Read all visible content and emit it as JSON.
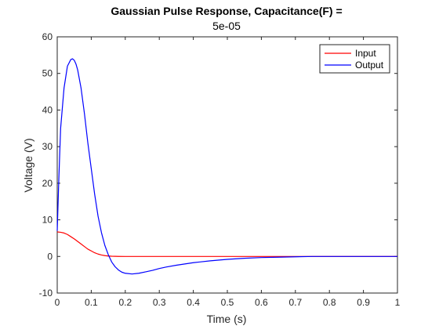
{
  "chart_data": {
    "type": "line",
    "title": "Gaussian Pulse Response, Capacitance(F) =",
    "subtitle": "5e-05",
    "xlabel": "Time (s)",
    "ylabel": "Voltage (V)",
    "xlim": [
      0,
      1
    ],
    "ylim": [
      -10,
      60
    ],
    "x_ticks": [
      0,
      0.1,
      0.2,
      0.3,
      0.4,
      0.5,
      0.6,
      0.7,
      0.8,
      0.9,
      1
    ],
    "x_tick_labels": [
      "0",
      "0.1",
      "0.2",
      "0.3",
      "0.4",
      "0.5",
      "0.6",
      "0.7",
      "0.8",
      "0.9",
      "1"
    ],
    "y_ticks": [
      -10,
      0,
      10,
      20,
      30,
      40,
      50,
      60
    ],
    "y_tick_labels": [
      "-10",
      "0",
      "10",
      "20",
      "30",
      "40",
      "50",
      "60"
    ],
    "grid": false,
    "legend_position": "top-right",
    "series": [
      {
        "name": "Input",
        "color": "#ff0000",
        "x": [
          0,
          0.01,
          0.02,
          0.03,
          0.04,
          0.05,
          0.06,
          0.07,
          0.08,
          0.09,
          0.1,
          0.11,
          0.12,
          0.13,
          0.14,
          0.15,
          0.16,
          0.17,
          0.18,
          0.2,
          0.22,
          0.25,
          0.3,
          0.4,
          0.5,
          0.6,
          0.7,
          0.8,
          0.9,
          1.0
        ],
        "y": [
          6.7,
          6.6,
          6.4,
          6.0,
          5.4,
          4.8,
          4.1,
          3.4,
          2.7,
          2.0,
          1.5,
          1.0,
          0.65,
          0.4,
          0.22,
          0.12,
          0.06,
          0.03,
          0.01,
          0,
          0,
          0,
          0,
          0,
          0,
          0,
          0,
          0,
          0,
          0
        ]
      },
      {
        "name": "Output",
        "color": "#0000ff",
        "x": [
          0,
          0.005,
          0.01,
          0.02,
          0.03,
          0.04,
          0.045,
          0.05,
          0.055,
          0.06,
          0.07,
          0.08,
          0.09,
          0.1,
          0.11,
          0.12,
          0.13,
          0.14,
          0.15,
          0.16,
          0.17,
          0.18,
          0.19,
          0.2,
          0.22,
          0.24,
          0.26,
          0.28,
          0.3,
          0.32,
          0.35,
          0.4,
          0.45,
          0.5,
          0.55,
          0.6,
          0.65,
          0.7,
          0.75,
          0.8,
          0.85,
          0.9,
          0.95,
          1.0
        ],
        "y": [
          7,
          22,
          35,
          46,
          52,
          53.8,
          54,
          53.6,
          52.6,
          51,
          46,
          39,
          31,
          24,
          17,
          11,
          6.5,
          3,
          0.5,
          -1.5,
          -2.8,
          -3.7,
          -4.3,
          -4.6,
          -4.8,
          -4.6,
          -4.2,
          -3.8,
          -3.3,
          -2.9,
          -2.4,
          -1.7,
          -1.2,
          -0.8,
          -0.5,
          -0.3,
          -0.2,
          -0.1,
          0,
          0,
          0,
          0,
          0,
          0
        ]
      }
    ]
  }
}
